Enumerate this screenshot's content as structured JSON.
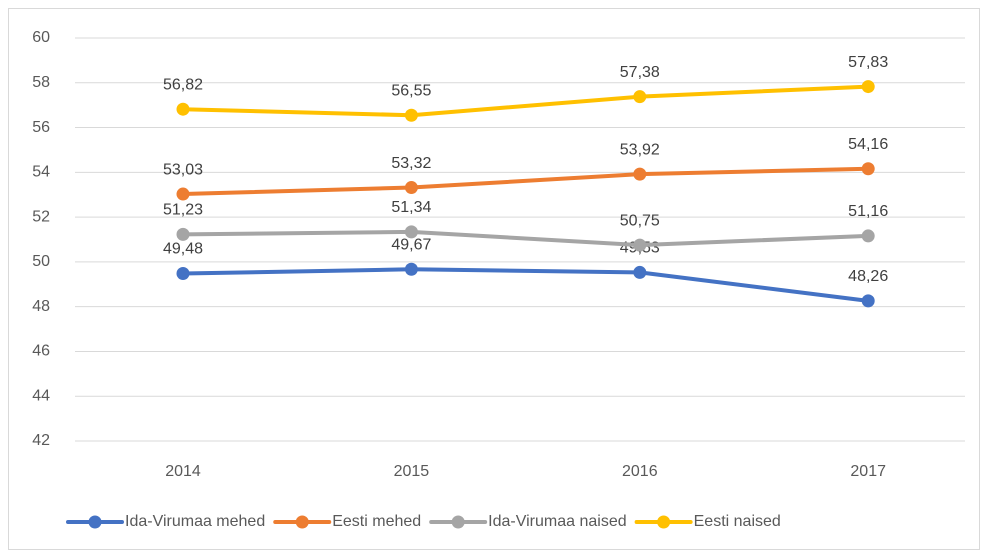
{
  "chart_data": {
    "type": "line",
    "categories": [
      "2014",
      "2015",
      "2016",
      "2017"
    ],
    "series": [
      {
        "name": "Ida-Virumaa mehed",
        "color": "#4472c4",
        "values": [
          49.48,
          49.67,
          49.53,
          48.26
        ],
        "value_labels": [
          "49,48",
          "49,67",
          "49,53",
          "48,26"
        ]
      },
      {
        "name": "Eesti mehed",
        "color": "#ed7d31",
        "values": [
          53.03,
          53.32,
          53.92,
          54.16
        ],
        "value_labels": [
          "53,03",
          "53,32",
          "53,92",
          "54,16"
        ]
      },
      {
        "name": "Ida-Virumaa naised",
        "color": "#a5a5a5",
        "values": [
          51.23,
          51.34,
          50.75,
          51.16
        ],
        "value_labels": [
          "51,23",
          "51,34",
          "50,75",
          "51,16"
        ]
      },
      {
        "name": "Eesti naised",
        "color": "#ffc000",
        "values": [
          56.82,
          56.55,
          57.38,
          57.83
        ],
        "value_labels": [
          "56,82",
          "56,55",
          "57,38",
          "57,83"
        ]
      }
    ],
    "ylim": [
      42,
      60
    ],
    "yticks": [
      42,
      44,
      46,
      48,
      50,
      52,
      54,
      56,
      58,
      60
    ],
    "grid": true,
    "legend": "bottom"
  }
}
